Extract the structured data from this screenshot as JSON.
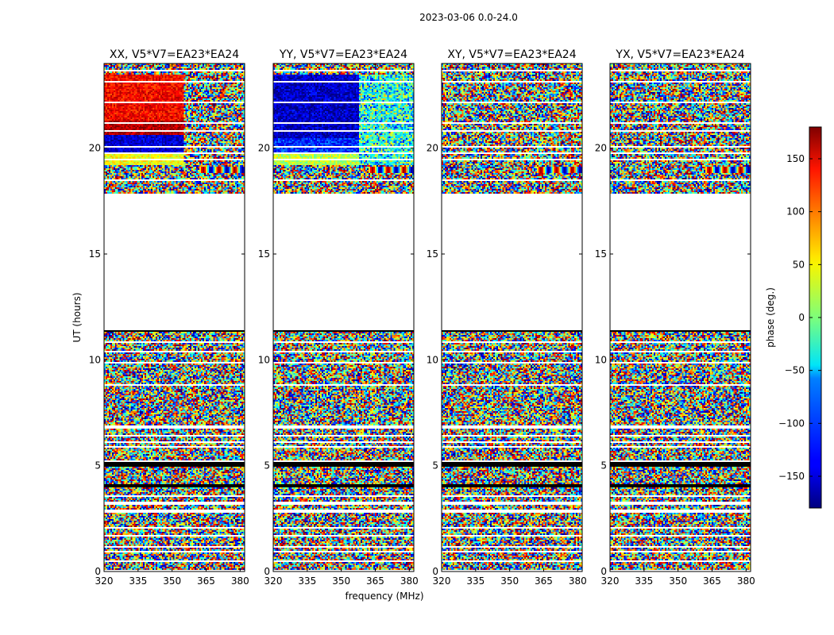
{
  "figure": {
    "suptitle": "2023-03-06 0.0-24.0"
  },
  "chart_data": {
    "type": "heatmap",
    "title": "2023-03-06 0.0-24.0",
    "xlabel": "frequency (MHz)",
    "ylabel": "UT (hours)",
    "colorbar_label": "phase (deg.)",
    "colormap": "jet",
    "xlim": [
      320,
      382
    ],
    "ylim": [
      0,
      24
    ],
    "clim": [
      -180,
      180
    ],
    "xticks": [
      320,
      335,
      350,
      365,
      380
    ],
    "yticks": [
      0,
      5,
      10,
      15,
      20
    ],
    "cticks": [
      150,
      100,
      50,
      0,
      -50,
      -100,
      -150
    ],
    "cticks_display": [
      "150",
      "100",
      "50",
      "0",
      "−50",
      "−100",
      "−150"
    ],
    "flagged_ut_range": [
      11.4,
      17.7
    ],
    "panels": [
      {
        "name": "XX",
        "title": "XX, V5*V7=EA23*EA24",
        "coherent_phase_ut_range": [
          19.2,
          23.5
        ],
        "coherent_phase_desc": "red/orange at low freq, blue band near 20-21 h, noise above 355 MHz"
      },
      {
        "name": "YY",
        "title": "YY, V5*V7=EA23*EA24",
        "coherent_phase_ut_range": [
          19.2,
          23.5
        ],
        "coherent_phase_desc": "blue at low freq, cyan/noise above 360 MHz"
      },
      {
        "name": "XY",
        "title": "XY, V5*V7=EA23*EA24",
        "coherent_phase_ut_range": null,
        "coherent_phase_desc": "noise-like phase"
      },
      {
        "name": "YX",
        "title": "YX, V5*V7=EA23*EA24",
        "coherent_phase_ut_range": null,
        "coherent_phase_desc": "noise-like phase"
      }
    ],
    "colors": {
      "axes": "#000000",
      "flagged": "#ffffff"
    }
  }
}
